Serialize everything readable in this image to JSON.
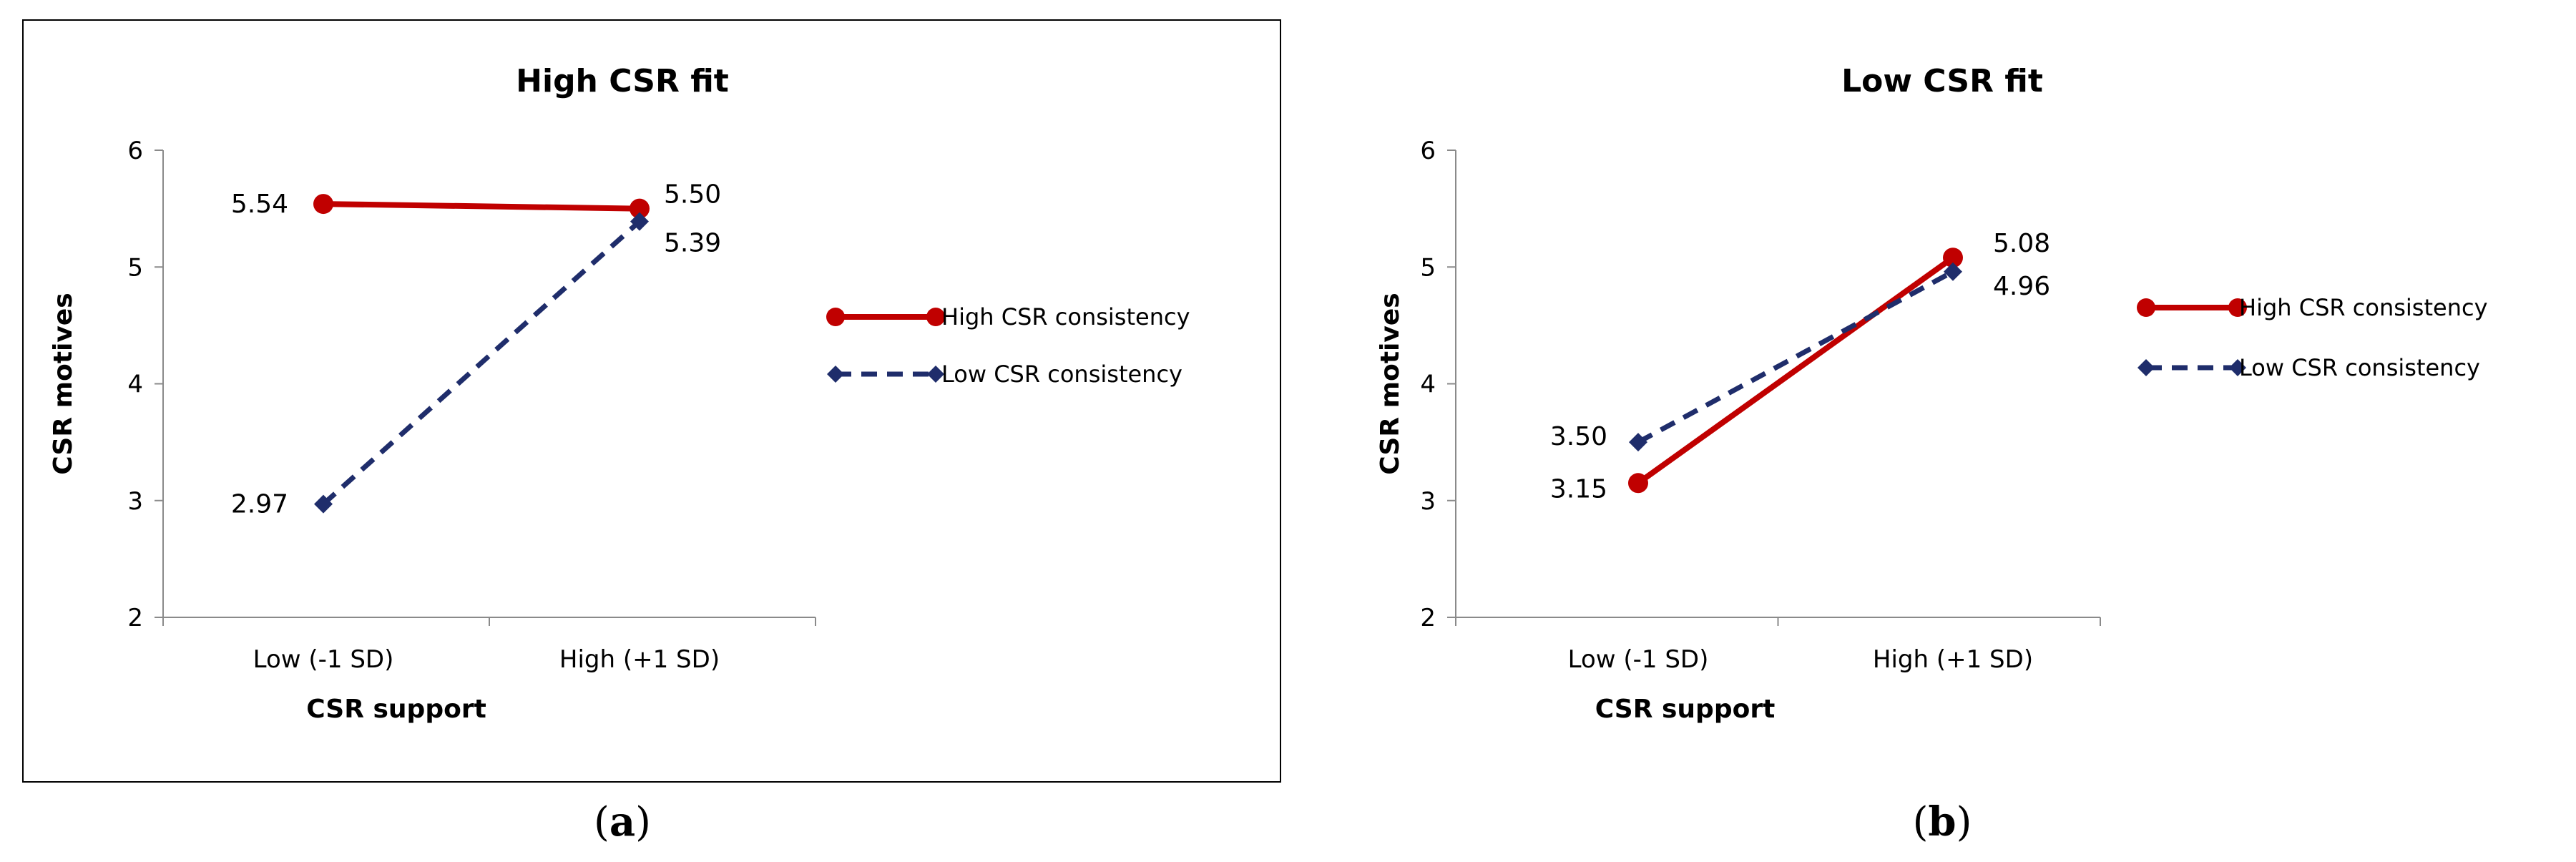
{
  "chart_data": [
    {
      "type": "line",
      "panel_label": "a",
      "title": "High CSR fit",
      "xlabel": "CSR support",
      "ylabel": "CSR motives",
      "categories": [
        "Low (-1 SD)",
        "High (+1 SD)"
      ],
      "ylim": [
        2,
        6
      ],
      "yticks": [
        "2",
        "3",
        "4",
        "5",
        "6"
      ],
      "legend_position": "right",
      "series": [
        {
          "name": "High CSR consistency",
          "values": [
            5.54,
            5.5
          ],
          "labels": [
            "5.54",
            "5.50"
          ],
          "color": "#c00000",
          "style": "solid",
          "marker": "circle"
        },
        {
          "name": "Low CSR consistency",
          "values": [
            2.97,
            5.39
          ],
          "labels": [
            "2.97",
            "5.39"
          ],
          "color": "#1f2d6b",
          "style": "dashed",
          "marker": "diamond"
        }
      ]
    },
    {
      "type": "line",
      "panel_label": "b",
      "title": "Low CSR fit",
      "xlabel": "CSR support",
      "ylabel": "CSR motives",
      "categories": [
        "Low (-1 SD)",
        "High (+1 SD)"
      ],
      "ylim": [
        2,
        6
      ],
      "yticks": [
        "2",
        "3",
        "4",
        "5",
        "6"
      ],
      "legend_position": "right",
      "series": [
        {
          "name": "High CSR consistency",
          "values": [
            3.15,
            5.08
          ],
          "labels": [
            "3.15",
            "5.08"
          ],
          "color": "#c00000",
          "style": "solid",
          "marker": "circle"
        },
        {
          "name": "Low CSR consistency",
          "values": [
            3.5,
            4.96
          ],
          "labels": [
            "3.50",
            "4.96"
          ],
          "color": "#1f2d6b",
          "style": "dashed",
          "marker": "diamond"
        }
      ]
    }
  ]
}
